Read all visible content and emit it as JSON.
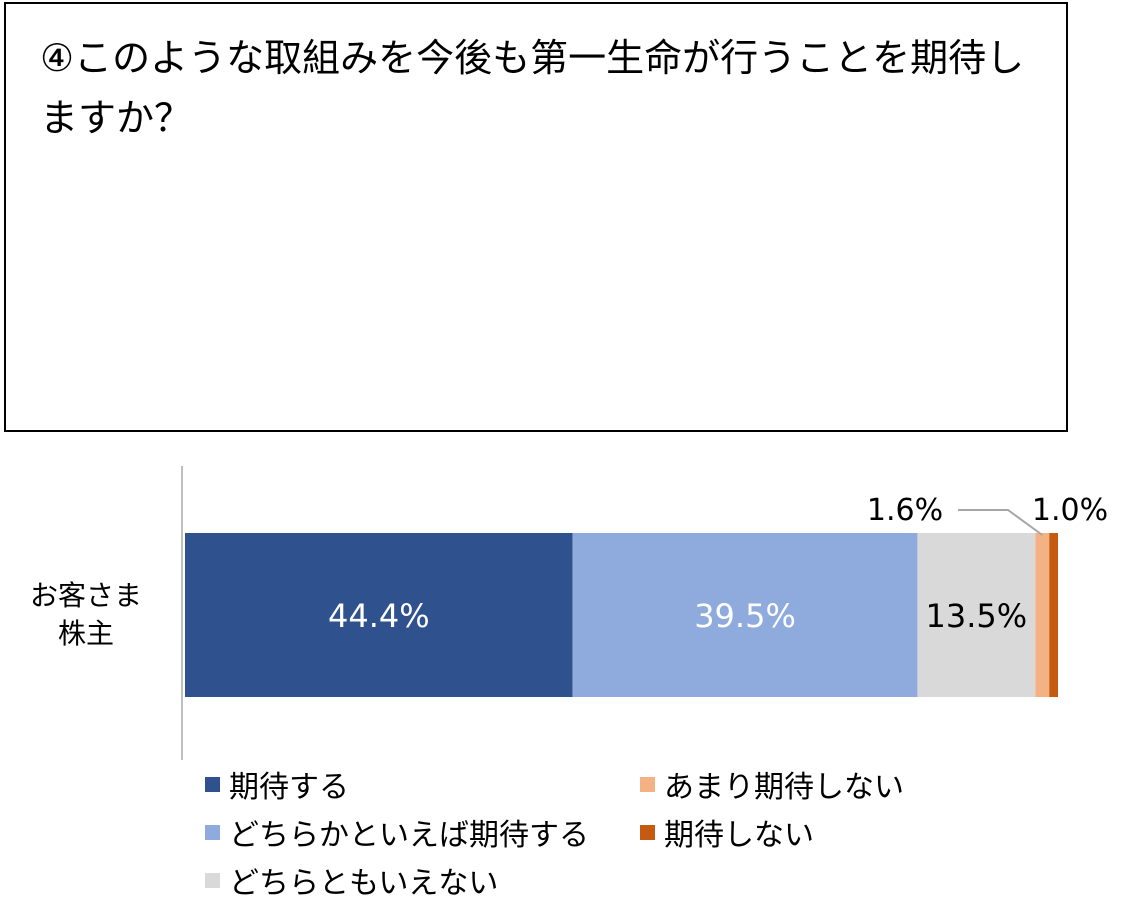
{
  "question": {
    "text": "④このような取組みを今後も第一生命が行うことを期待しますか？"
  },
  "chart_data": {
    "type": "bar",
    "orientation": "horizontal",
    "stacked": true,
    "normalized": true,
    "title": "",
    "xlabel": "",
    "ylabel": "",
    "categories": [
      "お客さま株主"
    ],
    "category_label_lines": [
      "お客さま",
      "株主"
    ],
    "xlim": [
      0,
      100
    ],
    "unit": "%",
    "grid": false,
    "legend_position": "bottom",
    "series": [
      {
        "name": "期待する",
        "values": [
          44.4
        ],
        "label": "44.4%",
        "color": "#2f528f"
      },
      {
        "name": "どちらかといえば期待する",
        "values": [
          39.5
        ],
        "label": "39.5%",
        "color": "#8faadc"
      },
      {
        "name": "どちらともいえない",
        "values": [
          13.5
        ],
        "label": "13.5%",
        "color": "#d9d9d9"
      },
      {
        "name": "あまり期待しない",
        "values": [
          1.6
        ],
        "label": "1.6%",
        "color": "#f4b183"
      },
      {
        "name": "期待しない",
        "values": [
          1.0
        ],
        "label": "1.0%",
        "color": "#c55a11"
      }
    ]
  }
}
